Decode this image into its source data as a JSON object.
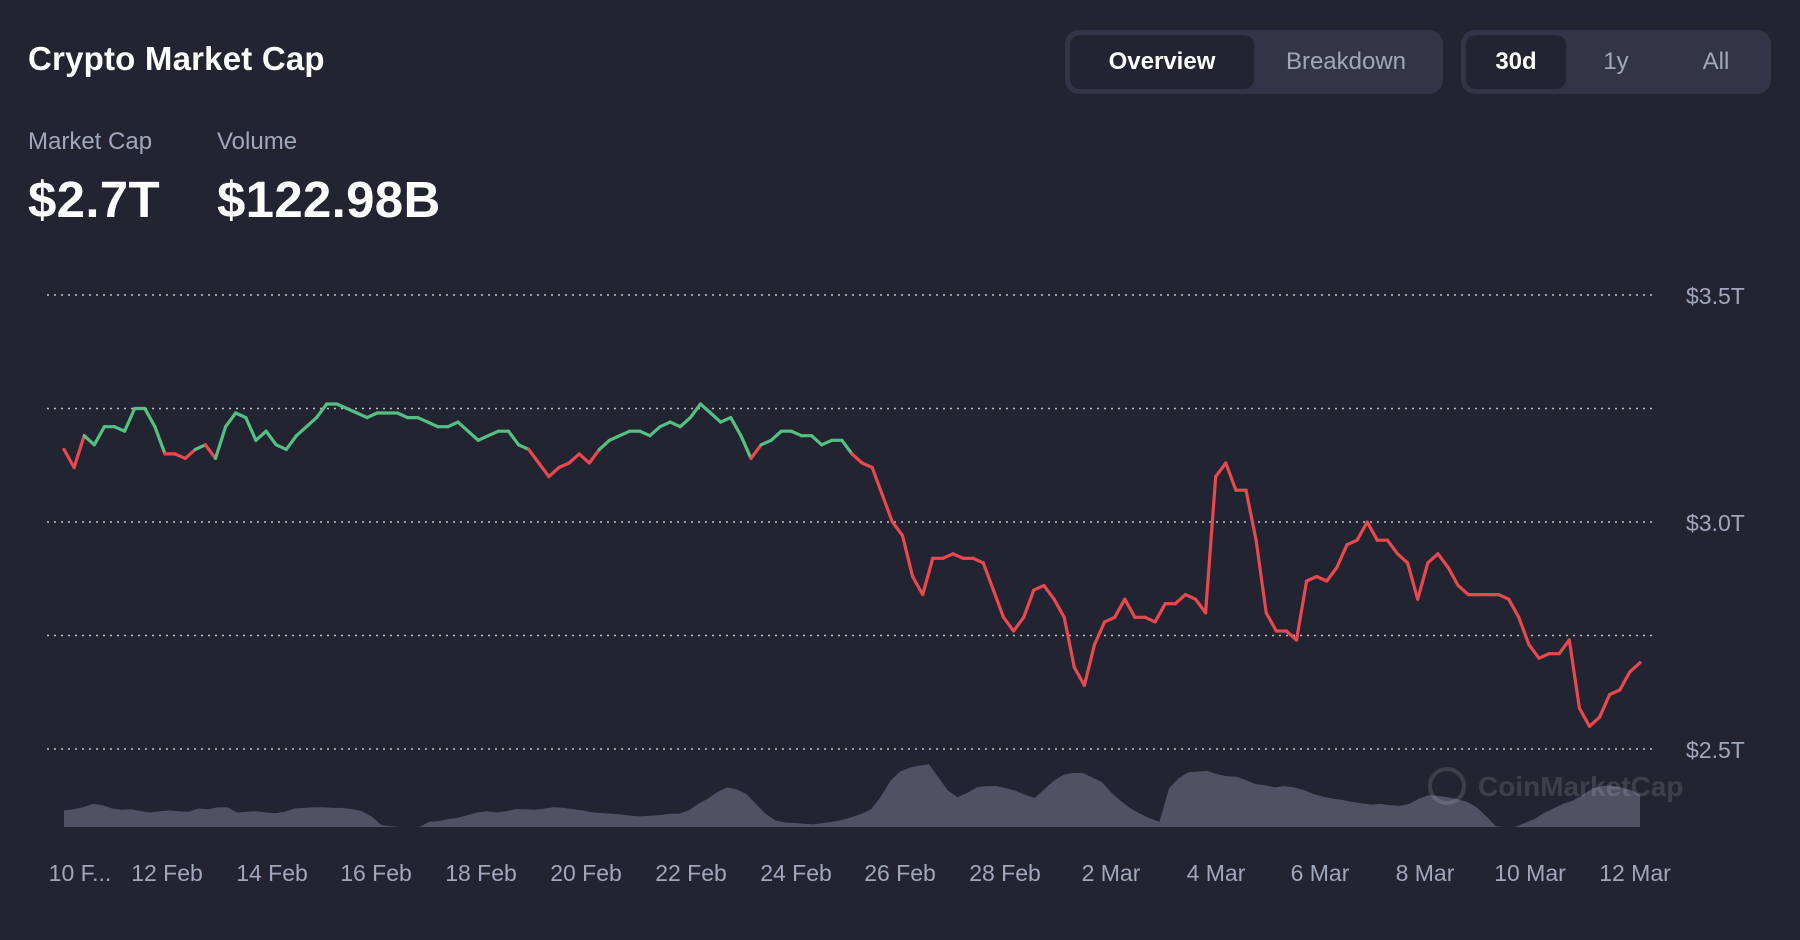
{
  "header": {
    "title": "Crypto Market Cap",
    "view_toggle": [
      {
        "label": "Overview",
        "active": true
      },
      {
        "label": "Breakdown",
        "active": false
      }
    ],
    "range_toggle": [
      {
        "label": "30d",
        "active": true
      },
      {
        "label": "1y",
        "active": false
      },
      {
        "label": "All",
        "active": false
      }
    ]
  },
  "stats": {
    "market_cap": {
      "label": "Market Cap",
      "value": "$2.7T"
    },
    "volume": {
      "label": "Volume",
      "value": "$122.98B"
    }
  },
  "colors": {
    "background": "#222531",
    "up": "#56c083",
    "down": "#e9484f",
    "volume": "#5e6273",
    "grid": "#d0d3dc",
    "muted_text": "#a1a7bb"
  },
  "chart_data": [
    {
      "type": "line",
      "series": [
        {
          "values": [
            3.16,
            3.12,
            3.19,
            3.17,
            3.21,
            3.21,
            3.2,
            3.25,
            3.25,
            3.21,
            3.15,
            3.15,
            3.14,
            3.16,
            3.17,
            3.14,
            3.21,
            3.24,
            3.23,
            3.18,
            3.2,
            3.17,
            3.16,
            3.19,
            3.21,
            3.23,
            3.26,
            3.26,
            3.25,
            3.24,
            3.23,
            3.24,
            3.24,
            3.24,
            3.23,
            3.23,
            3.22,
            3.21,
            3.21,
            3.22,
            3.2,
            3.18,
            3.19,
            3.2,
            3.2,
            3.17,
            3.16,
            3.13,
            3.1,
            3.12,
            3.13,
            3.15,
            3.13,
            3.16,
            3.18,
            3.19,
            3.2,
            3.2,
            3.19,
            3.21,
            3.22,
            3.21,
            3.23,
            3.26,
            3.24,
            3.22,
            3.23,
            3.19,
            3.14,
            3.17,
            3.18,
            3.2,
            3.2,
            3.19,
            3.19,
            3.17,
            3.18,
            3.18,
            3.15,
            3.13,
            3.12,
            3.06,
            3.0,
            2.97,
            2.88,
            2.84,
            2.92,
            2.92,
            2.93,
            2.92,
            2.92,
            2.91,
            2.85,
            2.79,
            2.76,
            2.79,
            2.85,
            2.86,
            2.83,
            2.79,
            2.68,
            2.64,
            2.73,
            2.78,
            2.79,
            2.83,
            2.79,
            2.79,
            2.78,
            2.82,
            2.82,
            2.84,
            2.83,
            2.8,
            3.1,
            3.13,
            3.07,
            3.07,
            2.96,
            2.8,
            2.76,
            2.76,
            2.74,
            2.87,
            2.88,
            2.87,
            2.9,
            2.95,
            2.96,
            3.0,
            2.96,
            2.96,
            2.93,
            2.91,
            2.83,
            2.91,
            2.93,
            2.9,
            2.86,
            2.84,
            2.84,
            2.84,
            2.84,
            2.83,
            2.79,
            2.73,
            2.7,
            2.71,
            2.71,
            2.74,
            2.59,
            2.55,
            2.57,
            2.62,
            2.63,
            2.67,
            2.69
          ]
        }
      ],
      "x_start": "10 Feb",
      "x_end": "12 Mar",
      "xticks": [
        "10 F...",
        "12 Feb",
        "14 Feb",
        "16 Feb",
        "18 Feb",
        "20 Feb",
        "22 Feb",
        "24 Feb",
        "26 Feb",
        "28 Feb",
        "2 Mar",
        "4 Mar",
        "6 Mar",
        "8 Mar",
        "10 Mar",
        "12 Mar"
      ],
      "yticks": [
        "$3.5T",
        "$3.0T",
        "$2.5T"
      ],
      "ylim": [
        2.5,
        3.5
      ],
      "y_units": "trillion USD",
      "grid": true,
      "color_rule": "above starting value = up color, below = down color"
    },
    {
      "type": "area",
      "relative_values": [
        0.25,
        0.27,
        0.3,
        0.35,
        0.33,
        0.28,
        0.26,
        0.27,
        0.24,
        0.22,
        0.24,
        0.25,
        0.24,
        0.23,
        0.28,
        0.27,
        0.3,
        0.3,
        0.22,
        0.23,
        0.24,
        0.22,
        0.21,
        0.23,
        0.28,
        0.29,
        0.3,
        0.3,
        0.29,
        0.29,
        0.27,
        0.24,
        0.16,
        0.03,
        0.01,
        0,
        0,
        0,
        0.08,
        0.09,
        0.12,
        0.14,
        0.18,
        0.22,
        0.24,
        0.22,
        0.24,
        0.27,
        0.27,
        0.26,
        0.28,
        0.3,
        0.29,
        0.27,
        0.25,
        0.22,
        0.21,
        0.2,
        0.19,
        0.17,
        0.16,
        0.17,
        0.18,
        0.2,
        0.2,
        0.25,
        0.35,
        0.43,
        0.53,
        0.6,
        0.57,
        0.5,
        0.35,
        0.2,
        0.1,
        0.07,
        0.06,
        0.05,
        0.04,
        0.06,
        0.08,
        0.11,
        0.15,
        0.2,
        0.27,
        0.46,
        0.7,
        0.84,
        0.9,
        0.93,
        0.95,
        0.75,
        0.55,
        0.45,
        0.52,
        0.6,
        0.62,
        0.62,
        0.59,
        0.55,
        0.49,
        0.44,
        0.57,
        0.7,
        0.79,
        0.82,
        0.82,
        0.75,
        0.68,
        0.52,
        0.39,
        0.28,
        0.2,
        0.13,
        0.08,
        0.59,
        0.74,
        0.83,
        0.84,
        0.85,
        0.8,
        0.77,
        0.76,
        0.71,
        0.65,
        0.63,
        0.6,
        0.62,
        0.6,
        0.56,
        0.5,
        0.46,
        0.43,
        0.41,
        0.38,
        0.36,
        0.34,
        0.35,
        0.33,
        0.32,
        0.35,
        0.43,
        0.48,
        0.47,
        0.45,
        0.42,
        0.38,
        0.3,
        0.16,
        0.01,
        0,
        0,
        0.06,
        0.12,
        0.21,
        0.28,
        0.35,
        0.4,
        0.48,
        0.58,
        0.62,
        0.63,
        0.6,
        0.56,
        0.49
      ]
    }
  ],
  "watermark": "CoinMarketCap"
}
